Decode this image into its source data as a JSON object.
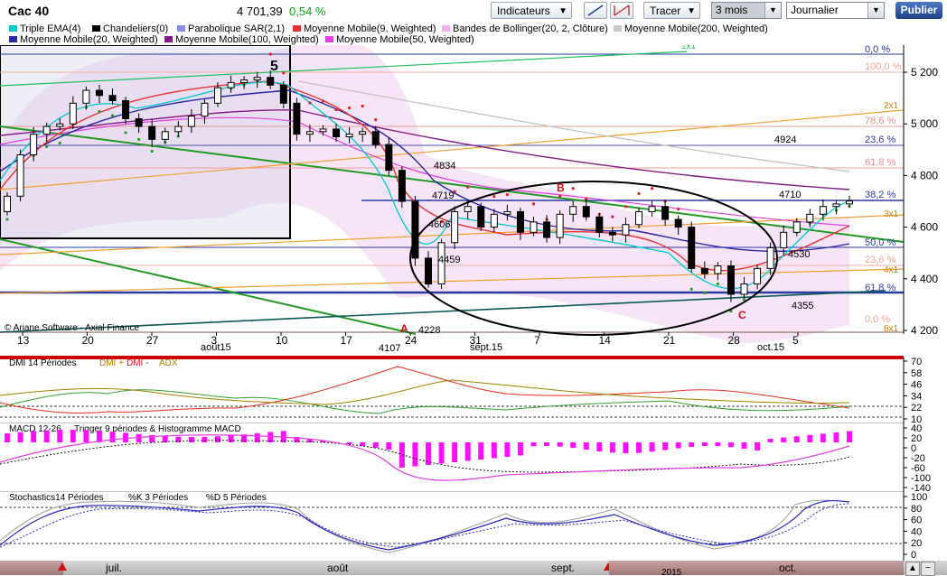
{
  "header": {
    "title": "Cac 40",
    "price": "4 701,39",
    "change": "0,54 %",
    "indicators_label": "Indicateurs",
    "draw_label": "Tracer",
    "period_value": "3 mois",
    "interval_value": "Journalier",
    "publish_label": "Publier"
  },
  "legend": [
    {
      "label": "Triple EMA(4)",
      "color": "#00c8c8"
    },
    {
      "label": "Chandeliers(0)",
      "color": "#000000"
    },
    {
      "label": "Parabolique SAR(2,1)",
      "color": "#8c8ce6"
    },
    {
      "label": "Moyenne Mobile(9, Weighted)",
      "color": "#e8302c"
    },
    {
      "label": "Bandes de Bollinger(20, 2, Clôture)",
      "color": "#f0b0f0"
    },
    {
      "label": "Moyenne Mobile(200, Weighted)",
      "color": "#c8c8c8"
    },
    {
      "label": "Moyenne Mobile(20, Weighted)",
      "color": "#2828a0"
    },
    {
      "label": "Moyenne Mobile(100, Weighted)",
      "color": "#801a80"
    },
    {
      "label": "Moyenne Mobile(50, Weighted)",
      "color": "#e040e0"
    }
  ],
  "copyright": "© Ariane Software - Axial Finance",
  "chart_data": [
    {
      "type": "candlestick",
      "title": "Cac 40",
      "y_ticks": [
        "5 200",
        "5 000",
        "4 800",
        "4 600",
        "4 400",
        "4 200"
      ],
      "ylim": [
        4200,
        5200
      ],
      "x_ticks": [
        "13",
        "20",
        "27",
        "3",
        "10",
        "17",
        "24",
        "31",
        "7",
        "14",
        "21",
        "28",
        "5"
      ],
      "month_labels": [
        "août15",
        "sept.15",
        "oct.15"
      ],
      "fibonacci_levels": [
        "0,0 %",
        "100,0 %",
        "78,6 %",
        "23,6 %",
        "61,8 %",
        "38,2 %",
        "50,0 %",
        "23,6 %",
        "61,8 %",
        "0,0 %"
      ],
      "fan_labels": [
        "1x1",
        "2x1",
        "3x1",
        "4x1",
        "8x1"
      ],
      "annotations": [
        "5",
        "A",
        "B",
        "C"
      ],
      "price_labels": [
        "4924",
        "4834",
        "4719",
        "4606",
        "4459",
        "4228",
        "4107",
        "4710",
        "4530",
        "4355"
      ],
      "closes": [
        4720,
        4880,
        4960,
        4990,
        5000,
        5080,
        5130,
        5110,
        5090,
        5020,
        4990,
        4940,
        4970,
        4990,
        5030,
        5080,
        5140,
        5160,
        5170,
        5180,
        5150,
        5080,
        4960,
        4970,
        4980,
        4950,
        4960,
        4970,
        4920,
        4820,
        4700,
        4480,
        4380,
        4540,
        4660,
        4680,
        4600,
        4650,
        4660,
        4580,
        4620,
        4560,
        4650,
        4680,
        4640,
        4580,
        4570,
        4610,
        4660,
        4680,
        4630,
        4600,
        4440,
        4420,
        4450,
        4340,
        4380,
        4440,
        4520,
        4580,
        4620,
        4650,
        4680,
        4690,
        4701
      ]
    },
    {
      "type": "line",
      "title": "DMI 14 Périodes",
      "series_names": [
        "DMI +",
        "DMI -",
        "ADX"
      ],
      "y_ticks": [
        "70",
        "58",
        "46",
        "34",
        "22",
        "10"
      ],
      "ylim": [
        10,
        70
      ]
    },
    {
      "type": "bar",
      "title": "MACD 12-26",
      "subtitle": "Trigger 9 périodes & Histogramme MACD",
      "y_ticks": [
        "40",
        "20",
        "0",
        "-20",
        "-60",
        "-100",
        "-140"
      ],
      "ylim": [
        -140,
        40
      ]
    },
    {
      "type": "line",
      "title": "Stochastics14 Périodes",
      "series_names": [
        "%K 3 Périodes",
        "%D 5 Périodes"
      ],
      "y_ticks": [
        "100",
        "80",
        "60",
        "40",
        "20",
        "0"
      ],
      "ylim": [
        0,
        100
      ]
    }
  ],
  "navigator": {
    "months": [
      "juil.",
      "août",
      "sept.",
      "oct."
    ],
    "year": "2015"
  },
  "colors": {
    "accent": "#1f3f8a",
    "separator": "#cc0000",
    "change_positive": "#10a010"
  }
}
